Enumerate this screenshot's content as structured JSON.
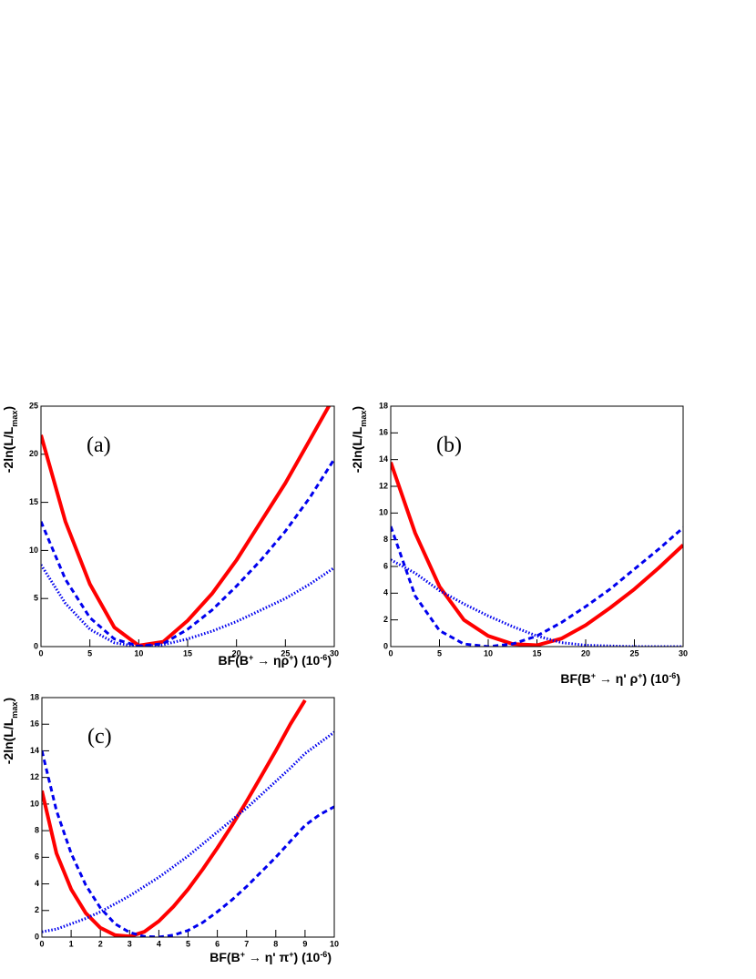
{
  "chart_data": [
    {
      "type": "line",
      "annotation": "(a)",
      "xlabel": [
        "BF(B",
        "+",
        " → ηρ",
        "+",
        ") (10",
        "-6",
        ")"
      ],
      "ylabel": [
        "-2ln(L/L",
        "max",
        ")"
      ],
      "xlim": [
        0,
        30
      ],
      "ylim": [
        0,
        25
      ],
      "xticks": [
        0,
        5,
        10,
        15,
        20,
        25,
        30
      ],
      "yticks": [
        0,
        5,
        10,
        15,
        20,
        25
      ],
      "x": [
        0,
        2.5,
        5,
        7.5,
        10,
        12.5,
        15,
        17.5,
        20,
        22.5,
        25,
        27.5,
        30
      ],
      "series": [
        {
          "color": "#ff0000",
          "style": "solid",
          "values": [
            22,
            13,
            6.5,
            2,
            0.1,
            0.5,
            2.7,
            5.5,
            9,
            13,
            17,
            21.5,
            26
          ]
        },
        {
          "color": "#0000ee",
          "style": "dashed",
          "values": [
            13,
            7,
            3,
            0.8,
            0.05,
            0.3,
            1.8,
            3.8,
            6.3,
            9,
            12,
            15.5,
            19.5
          ]
        },
        {
          "color": "#0000ee",
          "style": "dotted",
          "values": [
            8.5,
            4.5,
            1.8,
            0.4,
            0,
            0.2,
            0.8,
            1.6,
            2.6,
            3.8,
            5,
            6.5,
            8.2
          ]
        }
      ]
    },
    {
      "type": "line",
      "annotation": "(b)",
      "xlabel": [
        "BF(B",
        "+",
        " → η' ρ",
        "+",
        ") (10",
        "-6",
        ")"
      ],
      "ylabel": [
        "-2ln(L/L",
        "max",
        ")"
      ],
      "xlim": [
        0,
        30
      ],
      "ylim": [
        0,
        18
      ],
      "xticks": [
        0,
        5,
        10,
        15,
        20,
        25,
        30
      ],
      "yticks": [
        0,
        2,
        4,
        6,
        8,
        10,
        12,
        14,
        16,
        18
      ],
      "x": [
        0,
        2.5,
        5,
        7.5,
        10,
        12.5,
        15,
        17.5,
        20,
        22.5,
        25,
        27.5,
        30
      ],
      "series": [
        {
          "color": "#ff0000",
          "style": "solid",
          "values": [
            13.8,
            8.5,
            4.5,
            2,
            0.8,
            0.2,
            0.1,
            0.6,
            1.6,
            2.9,
            4.3,
            5.9,
            7.6
          ]
        },
        {
          "color": "#0000ee",
          "style": "dashed",
          "values": [
            9,
            3.8,
            1.2,
            0.2,
            0,
            0.2,
            0.8,
            1.8,
            3,
            4.3,
            5.8,
            7.3,
            8.9
          ]
        },
        {
          "color": "#0000ee",
          "style": "dotted",
          "values": [
            6.5,
            5.5,
            4.2,
            3.2,
            2.3,
            1.5,
            0.8,
            0.3,
            0.1,
            0.05,
            0,
            0,
            0
          ]
        }
      ]
    },
    {
      "type": "line",
      "annotation": "(c)",
      "xlabel": [
        "BF(B",
        "+",
        " → η' π",
        "+",
        ") (10",
        "-6",
        ")"
      ],
      "ylabel": [
        "-2ln(L/L",
        "max",
        ")"
      ],
      "xlim": [
        0,
        10
      ],
      "ylim": [
        0,
        18
      ],
      "xticks": [
        0,
        1,
        2,
        3,
        4,
        5,
        6,
        7,
        8,
        9,
        10
      ],
      "yticks": [
        0,
        2,
        4,
        6,
        8,
        10,
        12,
        14,
        16,
        18
      ],
      "x": [
        0,
        0.5,
        1,
        1.5,
        2,
        2.5,
        3,
        3.5,
        4,
        4.5,
        5,
        5.5,
        6,
        6.5,
        7,
        7.5,
        8,
        8.5,
        9,
        9.5,
        10
      ],
      "series": [
        {
          "color": "#ff0000",
          "style": "solid",
          "values": [
            11,
            6.3,
            3.6,
            1.8,
            0.7,
            0.15,
            0.05,
            0.4,
            1.2,
            2.3,
            3.6,
            5.1,
            6.7,
            8.4,
            10.2,
            12.1,
            14,
            16,
            17.8,
            null,
            null
          ]
        },
        {
          "color": "#0000ee",
          "style": "dashed",
          "values": [
            14,
            9.5,
            6.3,
            3.9,
            2.2,
            1,
            0.35,
            0.05,
            0,
            0.15,
            0.5,
            1.1,
            1.9,
            2.8,
            3.8,
            4.9,
            6,
            7.2,
            8.4,
            9.2,
            9.8
          ]
        },
        {
          "color": "#0000ee",
          "style": "dotted",
          "values": [
            0.4,
            0.6,
            1,
            1.4,
            1.9,
            2.5,
            3.1,
            3.8,
            4.5,
            5.3,
            6.1,
            7,
            7.9,
            8.8,
            9.7,
            10.7,
            11.7,
            12.7,
            13.8,
            14.6,
            15.4
          ]
        }
      ]
    }
  ]
}
